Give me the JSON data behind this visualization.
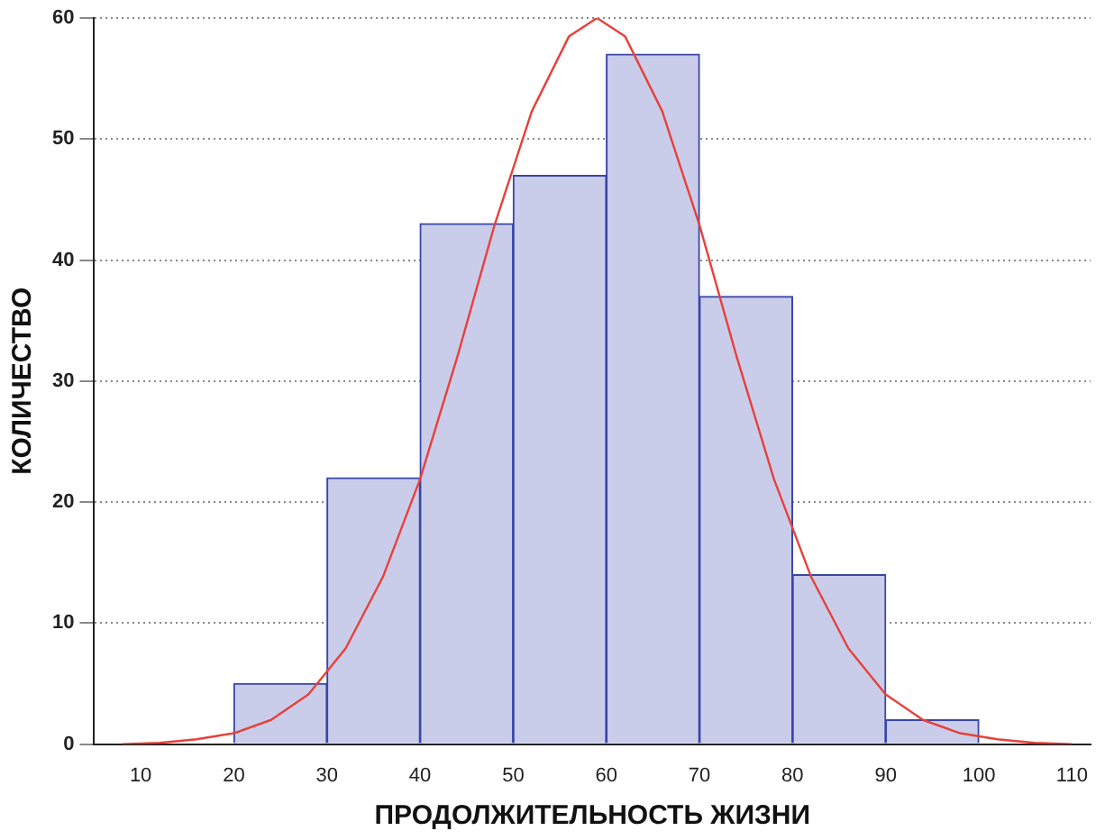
{
  "chart_data": {
    "type": "histogram",
    "xlabel": "ПРОДОЛЖИТЕЛЬНОСТЬ ЖИЗНИ",
    "ylabel": "КОЛИЧЕСТВО",
    "bins": [
      20,
      30,
      40,
      50,
      60,
      70,
      80,
      90,
      100
    ],
    "values": [
      5,
      22,
      43,
      47,
      57,
      37,
      14,
      2
    ],
    "color": "#c9cdea",
    "series": [
      {
        "type": "line",
        "color": "#e8403a",
        "marker": "none",
        "line_style": "solid",
        "x": [
          8,
          12,
          16,
          20,
          24,
          28,
          32,
          36,
          40,
          44,
          48,
          52,
          56,
          59,
          62,
          66,
          70,
          74,
          78,
          82,
          86,
          90,
          94,
          98,
          102,
          106,
          110
        ],
        "values": [
          0,
          0.1,
          0.4,
          0.9,
          2,
          4.1,
          7.9,
          13.8,
          21.9,
          32,
          42.9,
          52.3,
          58.5,
          60,
          58.5,
          52.3,
          42.9,
          32,
          21.9,
          13.8,
          7.9,
          4.1,
          2,
          0.9,
          0.4,
          0.1,
          0
        ]
      }
    ],
    "xlim": [
      5,
      112
    ],
    "xticks": [
      10,
      20,
      30,
      40,
      50,
      60,
      70,
      80,
      90,
      100,
      110
    ],
    "ylim": [
      0,
      60
    ],
    "yticks": [
      0,
      10,
      20,
      30,
      40,
      50,
      60
    ],
    "grid": "y",
    "legend": false
  }
}
